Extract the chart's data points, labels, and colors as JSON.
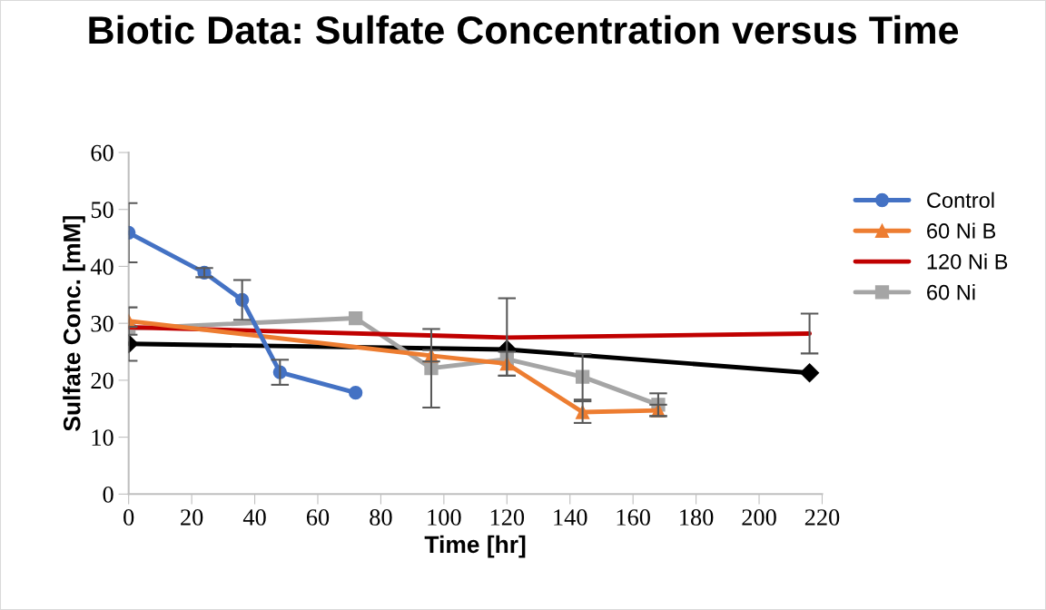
{
  "chart_data": {
    "type": "line",
    "title": "Biotic Data: Sulfate Concentration versus Time",
    "xlabel": "Time [hr]",
    "ylabel": "Sulfate Conc. [mM]",
    "xlim": [
      0,
      220
    ],
    "xticks": [
      0,
      20,
      40,
      60,
      80,
      100,
      120,
      140,
      160,
      180,
      200,
      220
    ],
    "ylim": [
      0,
      60
    ],
    "yticks": [
      0,
      10,
      20,
      30,
      40,
      50,
      60
    ],
    "grid": false,
    "legend": "right",
    "series": [
      {
        "name": "Control",
        "color": "#4472c4",
        "marker": "circle",
        "x": [
          0,
          24,
          36,
          48,
          72
        ],
        "values": [
          45.9,
          38.9,
          34.1,
          21.4,
          17.8
        ],
        "errors": [
          5.2,
          0.8,
          3.5,
          2.2,
          null
        ]
      },
      {
        "name": "60 Ni B",
        "color": "#ed7d31",
        "marker": "triangle",
        "x": [
          0,
          96,
          120,
          144,
          168
        ],
        "values": [
          30.4,
          24.3,
          22.9,
          14.4,
          14.7
        ],
        "errors": [
          2.4,
          1.0,
          2.1,
          1.9,
          1.0
        ]
      },
      {
        "name": "120 Ni B",
        "color": "#c00000",
        "marker": "none",
        "x": [
          0,
          120,
          216
        ],
        "values": [
          29.3,
          27.5,
          28.2
        ],
        "errors": [
          null,
          null,
          3.5
        ]
      },
      {
        "name": "60 Ni",
        "color": "#a5a5a5",
        "marker": "square",
        "x": [
          0,
          72,
          96,
          120,
          144,
          168
        ],
        "values": [
          29.1,
          30.9,
          22.1,
          23.7,
          20.6,
          15.7
        ],
        "errors": [
          null,
          null,
          6.9,
          [
            20.8,
            34.4
          ],
          4.0,
          2.0
        ]
      },
      {
        "color": "#000000",
        "marker": "diamond",
        "x": [
          0,
          120,
          216
        ],
        "values": [
          26.4,
          25.4,
          21.3
        ],
        "errors": [
          3.0,
          null,
          null
        ]
      }
    ]
  }
}
